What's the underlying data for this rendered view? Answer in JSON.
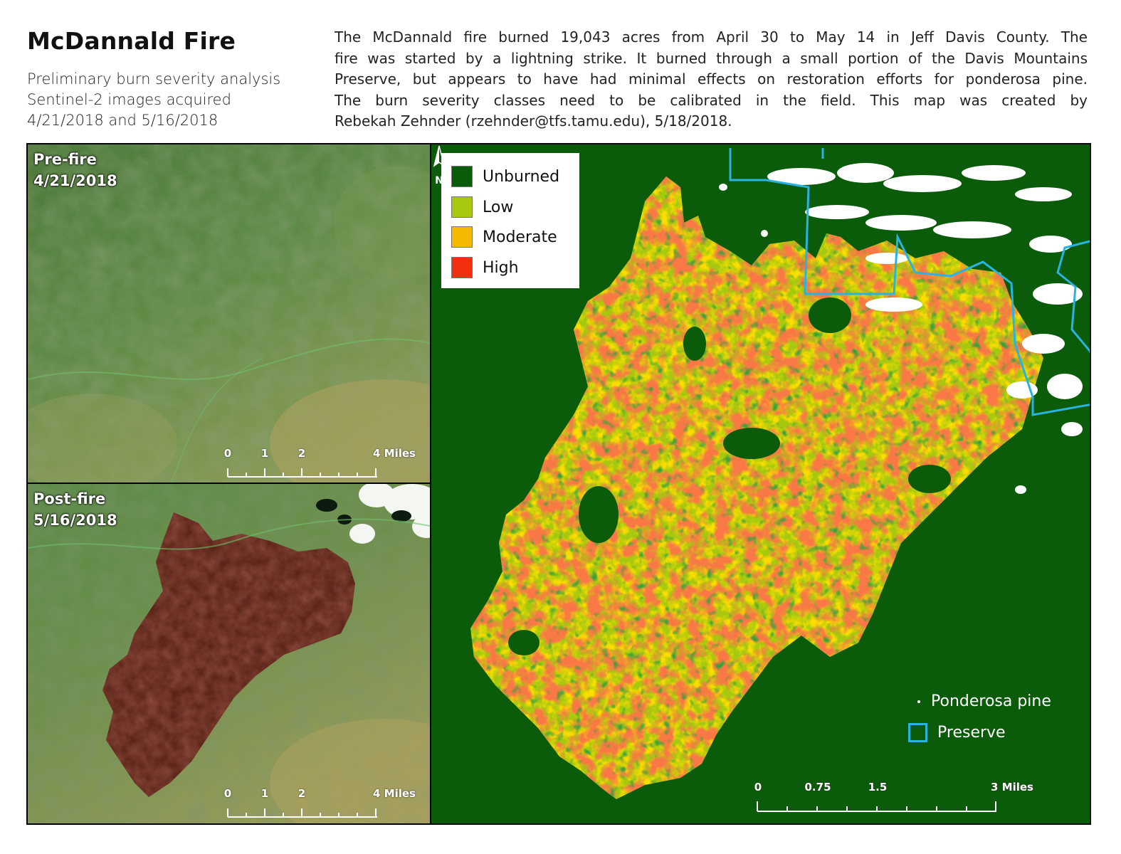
{
  "header": {
    "title": "McDannald Fire",
    "subtitle_lines": [
      "Preliminary burn severity analysis",
      "Sentinel-2 images acquired",
      "4/21/2018 and 5/16/2018"
    ],
    "description_lines": [
      "The McDannald fire burned 19,043 acres from April 30 to May 14 in Jeff Davis County.  The",
      "fire was started by a lightning strike.  It burned through a small portion of the Davis Mountains",
      "Preserve, but appears to have had minimal effects on restoration efforts for ponderosa pine.",
      "The burn severity classes need to be calibrated in the field.  This map was created by",
      "Rebekah Zehnder (rzehnder@tfs.tamu.edu), 5/18/2018."
    ]
  },
  "panels": {
    "pre_fire": {
      "label": "Pre-fire",
      "date": "4/21/2018",
      "scale_labels": [
        "0",
        "1",
        "2",
        "4 Miles"
      ]
    },
    "post_fire": {
      "label": "Post-fire",
      "date": "5/16/2018",
      "scale_labels": [
        "0",
        "1",
        "2",
        "4 Miles"
      ]
    }
  },
  "severity_map": {
    "legend": [
      {
        "label": "Unburned",
        "color": "#0a5b0a"
      },
      {
        "label": "Low",
        "color": "#a6c90f"
      },
      {
        "label": "Moderate",
        "color": "#f5b800"
      },
      {
        "label": "High",
        "color": "#f2300f"
      }
    ],
    "overlay_legend": {
      "pine_label": "Ponderosa pine",
      "preserve_label": "Preserve",
      "pine_color": "#ffffff",
      "preserve_color": "#2bb3e0"
    },
    "scale_labels": [
      "0",
      "0.75",
      "1.5",
      "3 Miles"
    ],
    "north_arrow": "N"
  },
  "colors": {
    "satellite_green": "#5f8a45",
    "burn_scar": "#5a2418",
    "background": "#0a5b0a"
  }
}
